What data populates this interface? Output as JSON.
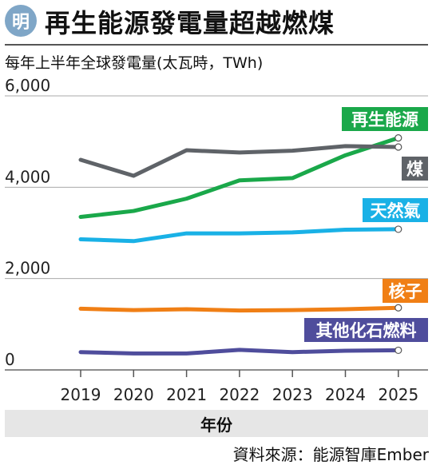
{
  "badge": "明",
  "chart_data": {
    "type": "line",
    "title": "再生能源發電量超越燃煤",
    "ylabel": "每年上半年全球發電量(太瓦時，TWh)",
    "xlabel": "年份",
    "source": "資料來源：能源智庫Ember",
    "categories": [
      "2019",
      "2020",
      "2021",
      "2022",
      "2023",
      "2024",
      "2025"
    ],
    "yticks": [
      "6,000",
      "4,000",
      "2,000",
      "0"
    ],
    "ylim": [
      0,
      6000
    ],
    "grid": true,
    "series": [
      {
        "name": "再生能源",
        "color": "#1aa84a",
        "values": [
          3350,
          3480,
          3750,
          4150,
          4200,
          4700,
          5080
        ]
      },
      {
        "name": "煤",
        "color": "#5f6368",
        "values": [
          4600,
          4250,
          4810,
          4760,
          4800,
          4900,
          4880
        ]
      },
      {
        "name": "天然氣",
        "color": "#19b1e6",
        "values": [
          2860,
          2820,
          2990,
          2990,
          3010,
          3070,
          3080
        ]
      },
      {
        "name": "核子",
        "color": "#f07f15",
        "values": [
          1340,
          1310,
          1330,
          1300,
          1310,
          1330,
          1360
        ]
      },
      {
        "name": "其他化石燃料",
        "color": "#4f4d9c",
        "values": [
          390,
          360,
          360,
          440,
          390,
          420,
          430
        ]
      }
    ]
  }
}
